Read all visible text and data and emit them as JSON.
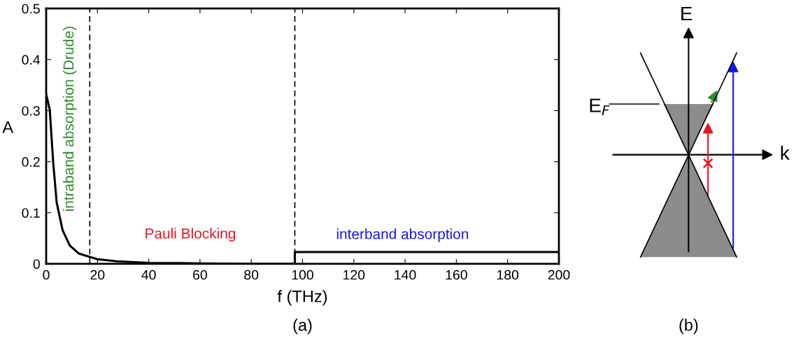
{
  "chart_data": [
    {
      "type": "line",
      "xlabel": "f (THz)",
      "ylabel": "A",
      "x": [
        0,
        1.4,
        2.75,
        4.1,
        6.4,
        9.2,
        12.8,
        16.8,
        20,
        27.5,
        40,
        60,
        80,
        97,
        97,
        120,
        160,
        200
      ],
      "series": [
        {
          "color": "#000000",
          "values": [
            0.332,
            0.302,
            0.198,
            0.12,
            0.066,
            0.036,
            0.02,
            0.014,
            0.009,
            0.005,
            0.002,
            0.001,
            0,
            0,
            0.023,
            0.023,
            0.023,
            0.023
          ]
        }
      ],
      "xlim": [
        0,
        200
      ],
      "xticks": [
        0,
        20,
        40,
        60,
        80,
        100,
        120,
        140,
        160,
        180,
        200
      ],
      "ylim": [
        0,
        0.5
      ],
      "yticks": [
        0,
        0.1,
        0.2,
        0.3,
        0.4,
        0.5
      ],
      "ref_lines": [
        {
          "axis": "x",
          "value": 17,
          "label": null,
          "color": "#000000",
          "line_style": "dashed"
        },
        {
          "axis": "x",
          "value": 97,
          "label": null,
          "color": "#000000",
          "line_style": "dashed"
        }
      ],
      "annotations": [
        "intraband absorption (Drude)",
        "Pauli Blocking",
        "interband absorption",
        "(a)"
      ],
      "grid": false,
      "legend": false
    },
    {
      "type": "other",
      "annotations": [
        "E",
        "E$_{F}$",
        "k",
        "(b)"
      ]
    }
  ]
}
